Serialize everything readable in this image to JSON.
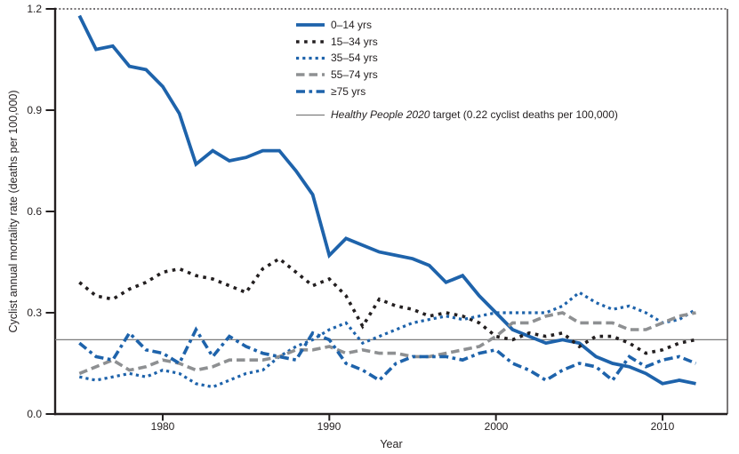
{
  "figure": {
    "y_axis_label": "Cyclist annual mortality rate (deaths per 100,000)",
    "x_axis_label": "Year",
    "y_tick_labels": [
      "0.0",
      "0.3",
      "0.6",
      "0.9",
      "1.2"
    ],
    "x_tick_labels": [
      "1980",
      "1990",
      "2000",
      "2010"
    ]
  },
  "legend": {
    "items": [
      {
        "label": "0–14 yrs"
      },
      {
        "label": "15–34 yrs"
      },
      {
        "label": "35–54 yrs"
      },
      {
        "label": "55–74 yrs"
      },
      {
        "label": "≥75 yrs"
      }
    ],
    "target": {
      "italic": "Healthy People 2020",
      "rest": " target (0.22 cyclist deaths per 100,000)"
    }
  },
  "colors": {
    "blue": "#1e63ab",
    "black": "#231f20",
    "gray": "#8e9092",
    "target_line": "#7c7c7c",
    "axis": "#231f20",
    "text": "#231f20",
    "background": "#ffffff"
  },
  "chart_data": {
    "type": "line",
    "xlabel": "Year",
    "ylabel": "Cyclist annual mortality rate (deaths per 100,000)",
    "ylim": [
      0.0,
      1.2
    ],
    "yticks": [
      0.0,
      0.3,
      0.6,
      0.9,
      1.2
    ],
    "xticks": [
      1980,
      1990,
      2000,
      2010
    ],
    "grid": false,
    "legend_position": "inside-top-center-left",
    "x": [
      1975,
      1976,
      1977,
      1978,
      1979,
      1980,
      1981,
      1982,
      1983,
      1984,
      1985,
      1986,
      1987,
      1988,
      1989,
      1990,
      1991,
      1992,
      1993,
      1994,
      1995,
      1996,
      1997,
      1998,
      1999,
      2000,
      2001,
      2002,
      2003,
      2004,
      2005,
      2006,
      2007,
      2008,
      2009,
      2010,
      2011,
      2012
    ],
    "series": [
      {
        "name": "0–14 yrs",
        "color": "#1e63ab",
        "style": "solid",
        "dash": null,
        "width": 3.8,
        "values": [
          1.18,
          1.08,
          1.09,
          1.03,
          1.02,
          0.97,
          0.89,
          0.74,
          0.78,
          0.75,
          0.76,
          0.78,
          0.78,
          0.72,
          0.65,
          0.47,
          0.52,
          0.5,
          0.48,
          0.47,
          0.46,
          0.44,
          0.39,
          0.41,
          0.35,
          0.3,
          0.25,
          0.23,
          0.21,
          0.22,
          0.21,
          0.17,
          0.15,
          0.14,
          0.12,
          0.09,
          0.1,
          0.09
        ]
      },
      {
        "name": "15–34 yrs",
        "color": "#231f20",
        "style": "square-dashed",
        "dash": [
          3.6,
          5.5
        ],
        "width": 3.6,
        "values": [
          0.39,
          0.35,
          0.34,
          0.37,
          0.39,
          0.42,
          0.43,
          0.41,
          0.4,
          0.38,
          0.36,
          0.43,
          0.46,
          0.42,
          0.38,
          0.4,
          0.35,
          0.26,
          0.34,
          0.32,
          0.31,
          0.29,
          0.3,
          0.29,
          0.27,
          0.23,
          0.22,
          0.24,
          0.23,
          0.24,
          0.2,
          0.23,
          0.23,
          0.21,
          0.18,
          0.19,
          0.21,
          0.22
        ]
      },
      {
        "name": "35–54 yrs",
        "color": "#1e63ab",
        "style": "dotted",
        "dash": [
          3.2,
          4
        ],
        "width": 3.2,
        "values": [
          0.11,
          0.1,
          0.11,
          0.12,
          0.11,
          0.13,
          0.12,
          0.09,
          0.08,
          0.1,
          0.12,
          0.13,
          0.17,
          0.2,
          0.22,
          0.25,
          0.27,
          0.21,
          0.23,
          0.25,
          0.27,
          0.28,
          0.29,
          0.28,
          0.29,
          0.3,
          0.3,
          0.3,
          0.3,
          0.32,
          0.36,
          0.33,
          0.31,
          0.32,
          0.3,
          0.27,
          0.28,
          0.31
        ]
      },
      {
        "name": "55–74 yrs",
        "color": "#8e9092",
        "style": "dashed",
        "dash": [
          9.5,
          5
        ],
        "width": 3.6,
        "values": [
          0.12,
          0.14,
          0.16,
          0.13,
          0.14,
          0.16,
          0.15,
          0.13,
          0.14,
          0.16,
          0.16,
          0.16,
          0.17,
          0.19,
          0.19,
          0.2,
          0.18,
          0.19,
          0.18,
          0.18,
          0.17,
          0.17,
          0.18,
          0.19,
          0.2,
          0.23,
          0.27,
          0.27,
          0.29,
          0.3,
          0.27,
          0.27,
          0.27,
          0.25,
          0.25,
          0.27,
          0.29,
          0.3
        ]
      },
      {
        "name": "≥75 yrs",
        "color": "#1e63ab",
        "style": "dash-dot",
        "dash": [
          10,
          4.5,
          3.6,
          4.5
        ],
        "width": 3.6,
        "values": [
          0.21,
          0.17,
          0.16,
          0.24,
          0.19,
          0.18,
          0.15,
          0.25,
          0.17,
          0.23,
          0.2,
          0.18,
          0.17,
          0.16,
          0.24,
          0.22,
          0.15,
          0.13,
          0.1,
          0.15,
          0.17,
          0.17,
          0.17,
          0.16,
          0.18,
          0.19,
          0.15,
          0.13,
          0.1,
          0.13,
          0.15,
          0.14,
          0.1,
          0.17,
          0.14,
          0.16,
          0.17,
          0.15
        ]
      }
    ],
    "reference_line": {
      "value": 0.22,
      "color": "#7c7c7c",
      "label": "Healthy People 2020 target (0.22 cyclist deaths per 100,000)"
    }
  }
}
